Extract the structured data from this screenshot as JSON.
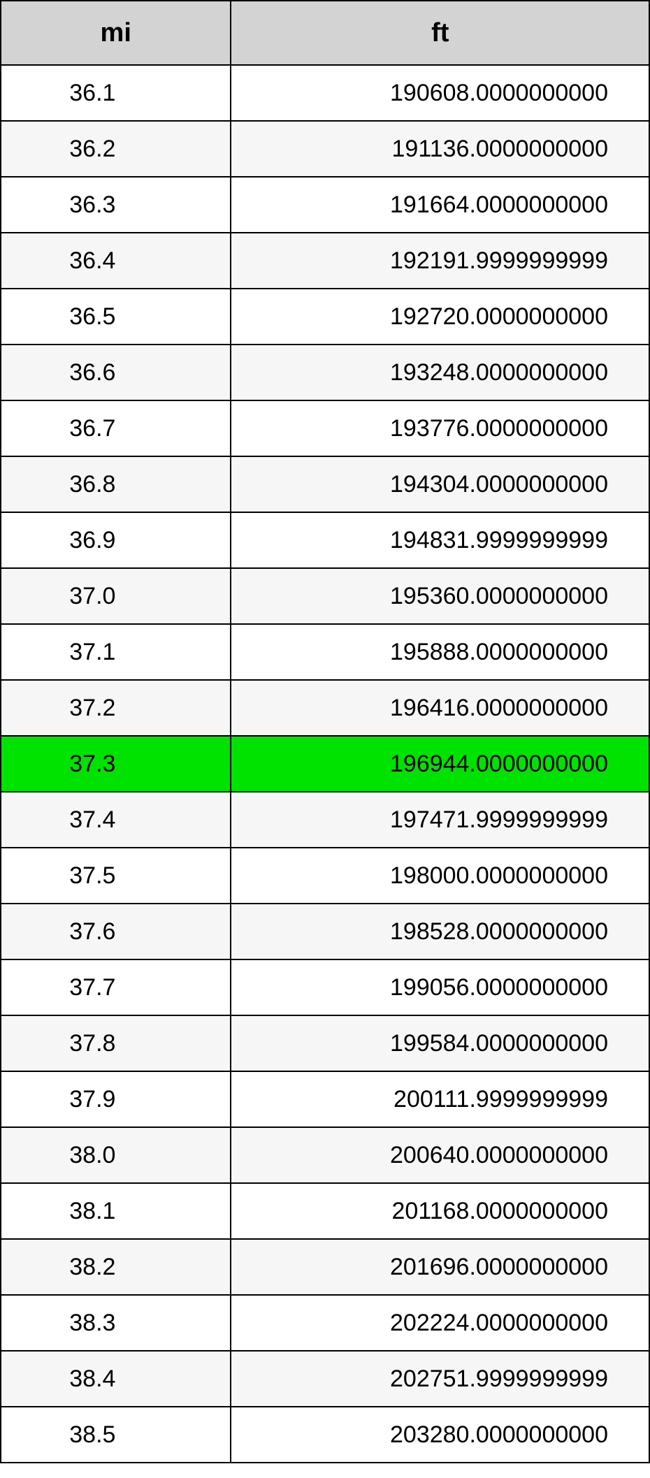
{
  "table": {
    "type": "table",
    "header_bg": "#d3d3d3",
    "header_font_size": 38,
    "header_font_weight": 700,
    "cell_font_size": 34,
    "border_color": "#000000",
    "row_bg_odd": "#ffffff",
    "row_bg_even": "#f6f6f6",
    "highlight_bg": "#00e300",
    "text_color": "#000000",
    "col1_width_pct": 35.5,
    "col2_width_pct": 64.5,
    "columns": [
      "mi",
      "ft"
    ],
    "highlight_index": 12,
    "rows": [
      [
        "36.1",
        "190608.0000000000"
      ],
      [
        "36.2",
        "191136.0000000000"
      ],
      [
        "36.3",
        "191664.0000000000"
      ],
      [
        "36.4",
        "192191.9999999999"
      ],
      [
        "36.5",
        "192720.0000000000"
      ],
      [
        "36.6",
        "193248.0000000000"
      ],
      [
        "36.7",
        "193776.0000000000"
      ],
      [
        "36.8",
        "194304.0000000000"
      ],
      [
        "36.9",
        "194831.9999999999"
      ],
      [
        "37.0",
        "195360.0000000000"
      ],
      [
        "37.1",
        "195888.0000000000"
      ],
      [
        "37.2",
        "196416.0000000000"
      ],
      [
        "37.3",
        "196944.0000000000"
      ],
      [
        "37.4",
        "197471.9999999999"
      ],
      [
        "37.5",
        "198000.0000000000"
      ],
      [
        "37.6",
        "198528.0000000000"
      ],
      [
        "37.7",
        "199056.0000000000"
      ],
      [
        "37.8",
        "199584.0000000000"
      ],
      [
        "37.9",
        "200111.9999999999"
      ],
      [
        "38.0",
        "200640.0000000000"
      ],
      [
        "38.1",
        "201168.0000000000"
      ],
      [
        "38.2",
        "201696.0000000000"
      ],
      [
        "38.3",
        "202224.0000000000"
      ],
      [
        "38.4",
        "202751.9999999999"
      ],
      [
        "38.5",
        "203280.0000000000"
      ]
    ]
  }
}
